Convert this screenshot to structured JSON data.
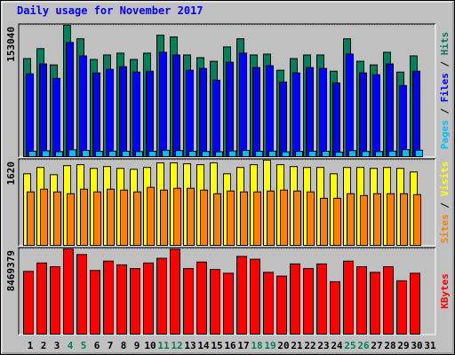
{
  "chart_data": [
    {
      "type": "bar",
      "title": "Daily usage for November 2017",
      "legend_separator": " / ",
      "ylim": [
        0,
        153040
      ],
      "yticks": [
        153040
      ],
      "series": [
        {
          "name": "Hits",
          "color": "#00805C",
          "values": [
            114500,
            126000,
            107200,
            153040,
            137400,
            113500,
            118700,
            120800,
            113500,
            120800,
            141600,
            139500,
            118700,
            115600,
            111400,
            128000,
            137400,
            118700,
            119700,
            101000,
            114500,
            118700,
            118700,
            99900,
            137400,
            111400,
            107200,
            121800,
            98900,
            117600,
            null
          ]
        },
        {
          "name": "Files",
          "color": "#0000FF",
          "values": [
            96800,
            108300,
            91600,
            133200,
            117600,
            97900,
            102000,
            105100,
            98900,
            99900,
            121800,
            118700,
            101000,
            103100,
            89500,
            110300,
            120800,
            104100,
            106200,
            87400,
            97900,
            104100,
            103100,
            86400,
            119700,
            97900,
            95800,
            108300,
            83300,
            99900,
            null
          ]
        },
        {
          "name": "Pages",
          "color": "#00C0FF",
          "values": [
            7300,
            7800,
            6800,
            8900,
            8200,
            7100,
            7400,
            7300,
            6900,
            7200,
            8400,
            8100,
            7300,
            7000,
            6700,
            7600,
            8300,
            7200,
            7400,
            6600,
            7100,
            7300,
            7200,
            6300,
            8000,
            7000,
            6900,
            7400,
            9100,
            8500,
            null
          ]
        }
      ]
    },
    {
      "type": "bar",
      "legend_separator": " / ",
      "ylim": [
        0,
        1620
      ],
      "yticks": [
        1620
      ],
      "series": [
        {
          "name": "Visits",
          "color": "#FFFF00",
          "values": [
            1364,
            1483,
            1347,
            1517,
            1535,
            1466,
            1500,
            1466,
            1449,
            1483,
            1569,
            1569,
            1552,
            1535,
            1569,
            1364,
            1483,
            1535,
            1620,
            1535,
            1500,
            1483,
            1483,
            1364,
            1483,
            1483,
            1466,
            1483,
            1466,
            1398,
            null
          ]
        },
        {
          "name": "Sites",
          "color": "#FF8000",
          "values": [
            1023,
            1074,
            1023,
            989,
            1074,
            1023,
            1074,
            1057,
            1023,
            1108,
            1057,
            1091,
            1091,
            1057,
            989,
            1040,
            1023,
            1023,
            1040,
            1057,
            1040,
            1023,
            904,
            904,
            989,
            955,
            989,
            989,
            989,
            972,
            null
          ]
        }
      ]
    },
    {
      "type": "bar",
      "ylim": [
        0,
        8469379
      ],
      "yticks": [
        8469379
      ],
      "categories": [
        "1",
        "2",
        "3",
        "4",
        "5",
        "6",
        "7",
        "8",
        "9",
        "10",
        "11",
        "12",
        "13",
        "14",
        "15",
        "16",
        "17",
        "18",
        "19",
        "20",
        "21",
        "22",
        "23",
        "24",
        "25",
        "26",
        "27",
        "28",
        "29",
        "30",
        "31"
      ],
      "highlight_categories": [
        "4",
        "5",
        "11",
        "12",
        "18",
        "19",
        "25",
        "26"
      ],
      "highlight_color": "#00805C",
      "series": [
        {
          "name": "KBytes",
          "color": "#FF0000",
          "values": [
            6260000,
            7088000,
            6720000,
            8469379,
            7917000,
            6352000,
            7273000,
            6904000,
            6536000,
            7088000,
            7549000,
            8440000,
            6536000,
            7181000,
            6444000,
            6076000,
            7733000,
            7457000,
            6168000,
            5800000,
            6996000,
            6536000,
            6996000,
            5247000,
            7273000,
            6720000,
            6168000,
            6720000,
            5339000,
            6076000,
            null
          ]
        }
      ]
    }
  ]
}
